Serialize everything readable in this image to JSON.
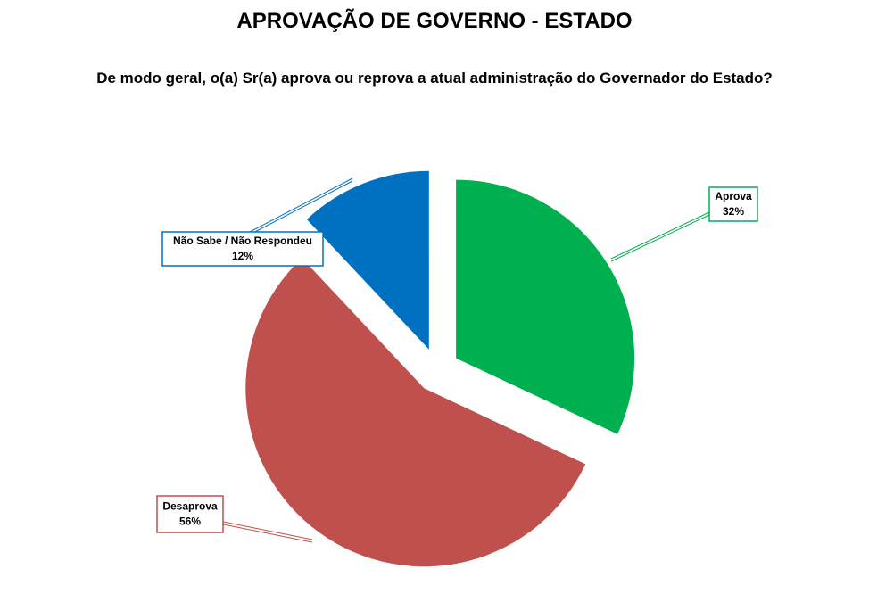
{
  "chart_data": {
    "type": "pie",
    "title": "APROVAÇÃO DE GOVERNO - ESTADO",
    "subtitle": "De modo geral, o(a) Sr(a) aprova ou reprova a atual administração do Governador do Estado?",
    "categories": [
      "Aprova",
      "Desaprova",
      "Não Sabe / Não Respondeu"
    ],
    "values": [
      32,
      56,
      12
    ],
    "value_labels": [
      "32%",
      "56%",
      "12%"
    ],
    "colors": [
      "#00b050",
      "#c0504d",
      "#0070c0"
    ]
  }
}
